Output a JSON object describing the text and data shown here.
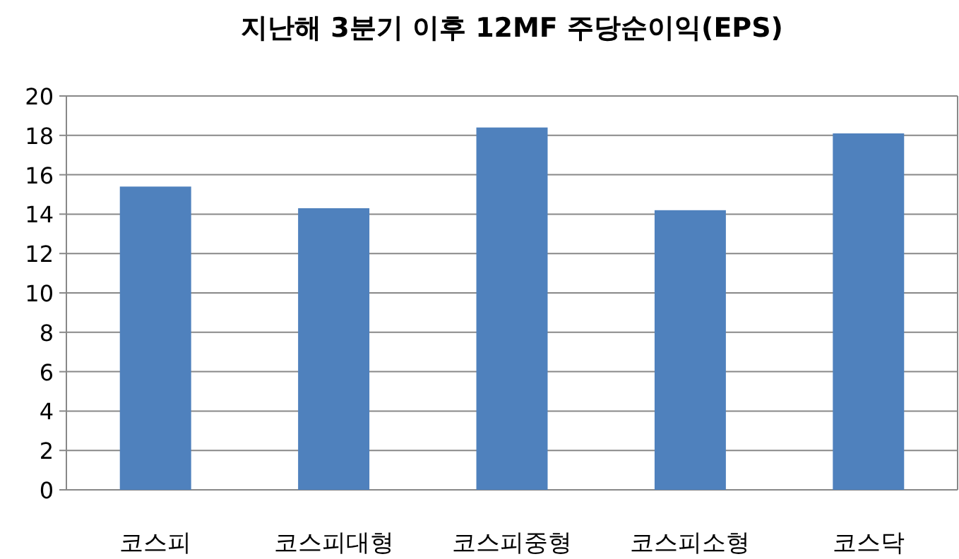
{
  "chart_data": {
    "type": "bar",
    "title": "지난해 3분기 이후 12MF 주당순이익(EPS)",
    "categories": [
      "코스피",
      "코스피대형",
      "코스피중형",
      "코스피소형",
      "코스닥"
    ],
    "values": [
      15.4,
      14.3,
      18.4,
      14.2,
      18.1
    ],
    "color": "#4f81bd",
    "ylim": [
      0,
      20
    ],
    "yticks": [
      0,
      2,
      4,
      6,
      8,
      10,
      12,
      14,
      16,
      18,
      20
    ],
    "grid": "y"
  }
}
